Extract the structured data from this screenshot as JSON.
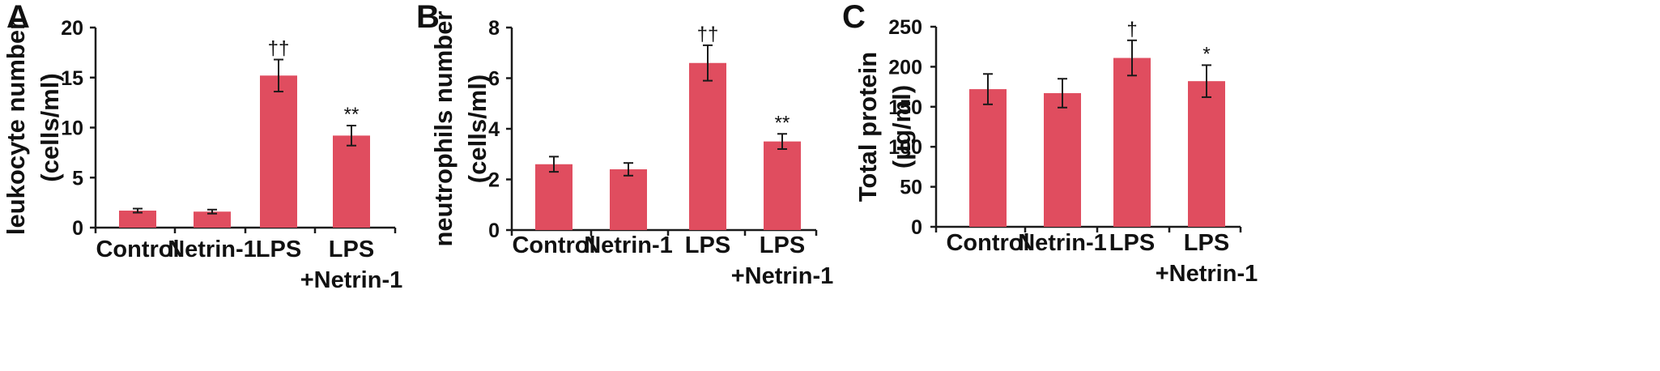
{
  "chart_data": [
    {
      "type": "bar",
      "panel": "A",
      "ylabel_line1": "leukocyte number",
      "ylabel_line2": "(cells/ml)",
      "ylim": [
        0,
        20
      ],
      "yticks": [
        0,
        5,
        10,
        15,
        20
      ],
      "bar_color": "#e04d5f",
      "categories": [
        {
          "line1": "Control",
          "line2": ""
        },
        {
          "line1": "Netrin-1",
          "line2": ""
        },
        {
          "line1": "LPS",
          "line2": ""
        },
        {
          "line1": "LPS",
          "line2": "+Netrin-1"
        }
      ],
      "values": [
        1.7,
        1.6,
        15.2,
        9.2
      ],
      "errors": [
        0.2,
        0.2,
        1.6,
        1.0
      ],
      "significance": [
        "",
        "",
        "††",
        "**"
      ]
    },
    {
      "type": "bar",
      "panel": "B",
      "ylabel_line1": "neutrophils number",
      "ylabel_line2": "(cells/ml)",
      "ylim": [
        0,
        8
      ],
      "yticks": [
        0,
        2,
        4,
        6,
        8
      ],
      "bar_color": "#e04d5f",
      "categories": [
        {
          "line1": "Control",
          "line2": ""
        },
        {
          "line1": "Netrin-1",
          "line2": ""
        },
        {
          "line1": "LPS",
          "line2": ""
        },
        {
          "line1": "LPS",
          "line2": "+Netrin-1"
        }
      ],
      "values": [
        2.6,
        2.4,
        6.6,
        3.5
      ],
      "errors": [
        0.3,
        0.25,
        0.7,
        0.3
      ],
      "significance": [
        "",
        "",
        "††",
        "**"
      ]
    },
    {
      "type": "bar",
      "panel": "C",
      "ylabel_line1": "Total protein",
      "ylabel_line2": "(μg/ml)",
      "ylim": [
        0,
        250
      ],
      "yticks": [
        0,
        50,
        100,
        150,
        200,
        250
      ],
      "bar_color": "#e04d5f",
      "categories": [
        {
          "line1": "Control",
          "line2": ""
        },
        {
          "line1": "Netrin-1",
          "line2": ""
        },
        {
          "line1": "LPS",
          "line2": ""
        },
        {
          "line1": "LPS",
          "line2": "+Netrin-1"
        }
      ],
      "values": [
        172,
        167,
        211,
        182
      ],
      "errors": [
        19,
        18,
        22,
        20
      ],
      "significance": [
        "",
        "",
        "†",
        "*"
      ]
    }
  ]
}
